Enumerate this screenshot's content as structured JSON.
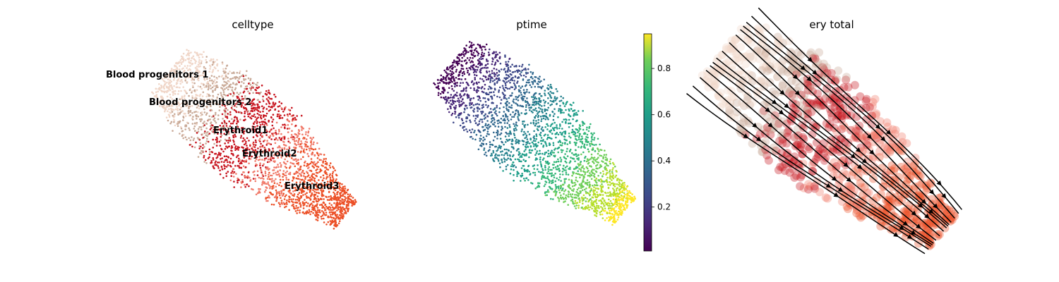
{
  "chart_data": [
    {
      "type": "scatter",
      "title": "celltype",
      "xlabel": "",
      "ylabel": "",
      "axes": "off",
      "grid": false,
      "categories": [
        "Blood progenitors 1",
        "Blood progenitors 2",
        "Erythroid1",
        "Erythroid2",
        "Erythroid3"
      ],
      "colors": {
        "Blood progenitors 1": "#f0d6c8",
        "Blood progenitors 2": "#c9aa98",
        "Erythroid1": "#c7141e",
        "Erythroid2": "#f07a6a",
        "Erythroid3": "#ec5027"
      },
      "cluster_centroids": [
        {
          "label": "Blood progenitors 1",
          "x": 0.12,
          "y": 0.8
        },
        {
          "label": "Blood progenitors 2",
          "x": 0.29,
          "y": 0.66
        },
        {
          "label": "Erythroid1",
          "x": 0.44,
          "y": 0.52
        },
        {
          "label": "Erythroid2",
          "x": 0.56,
          "y": 0.4
        },
        {
          "label": "Erythroid3",
          "x": 0.7,
          "y": 0.24
        }
      ]
    },
    {
      "type": "scatter",
      "title": "ptime",
      "xlabel": "",
      "ylabel": "",
      "axes": "off",
      "grid": false,
      "colormap": "viridis",
      "colorbar": {
        "range": [
          0.01,
          0.95
        ],
        "ticks": [
          0.2,
          0.4,
          0.6,
          0.8
        ],
        "tick_labels": [
          "0.2",
          "0.4",
          "0.6",
          "0.8"
        ],
        "placement": "right"
      }
    },
    {
      "type": "scatter",
      "title": "ery total",
      "xlabel": "",
      "ylabel": "",
      "axes": "off",
      "grid": false,
      "overlay": "velocity-streamlines",
      "stream_color": "#000000",
      "stream_direction": "top-left to bottom-right"
    }
  ]
}
